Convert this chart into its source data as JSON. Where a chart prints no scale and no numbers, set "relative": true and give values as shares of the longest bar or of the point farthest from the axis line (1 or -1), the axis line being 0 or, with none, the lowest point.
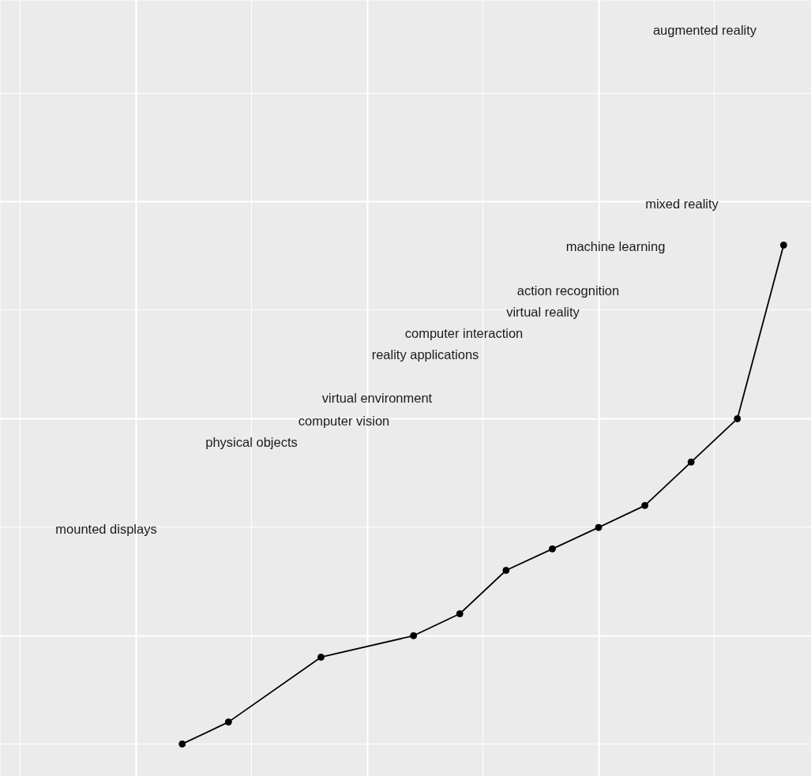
{
  "chart_data": {
    "type": "line",
    "relative": true,
    "categories": [
      null,
      null,
      null,
      null,
      null,
      null,
      null,
      null,
      null,
      null,
      null,
      null,
      null,
      null
    ],
    "values": [
      0,
      0.044,
      null,
      0.174,
      null,
      0.217,
      0.261,
      0.348,
      0.391,
      0.434,
      0.478,
      0.565,
      0.652,
      1
    ],
    "color": "#000000",
    "marker": "circle",
    "line_style": "solid",
    "tick_labels": false,
    "grid": true,
    "annotations": [
      "augmented reality",
      "mixed reality",
      "machine learning",
      "action recognition",
      "virtual reality",
      "computer interaction",
      "reality applications",
      "virtual environment",
      "computer vision",
      "physical objects",
      "mounted displays"
    ]
  }
}
